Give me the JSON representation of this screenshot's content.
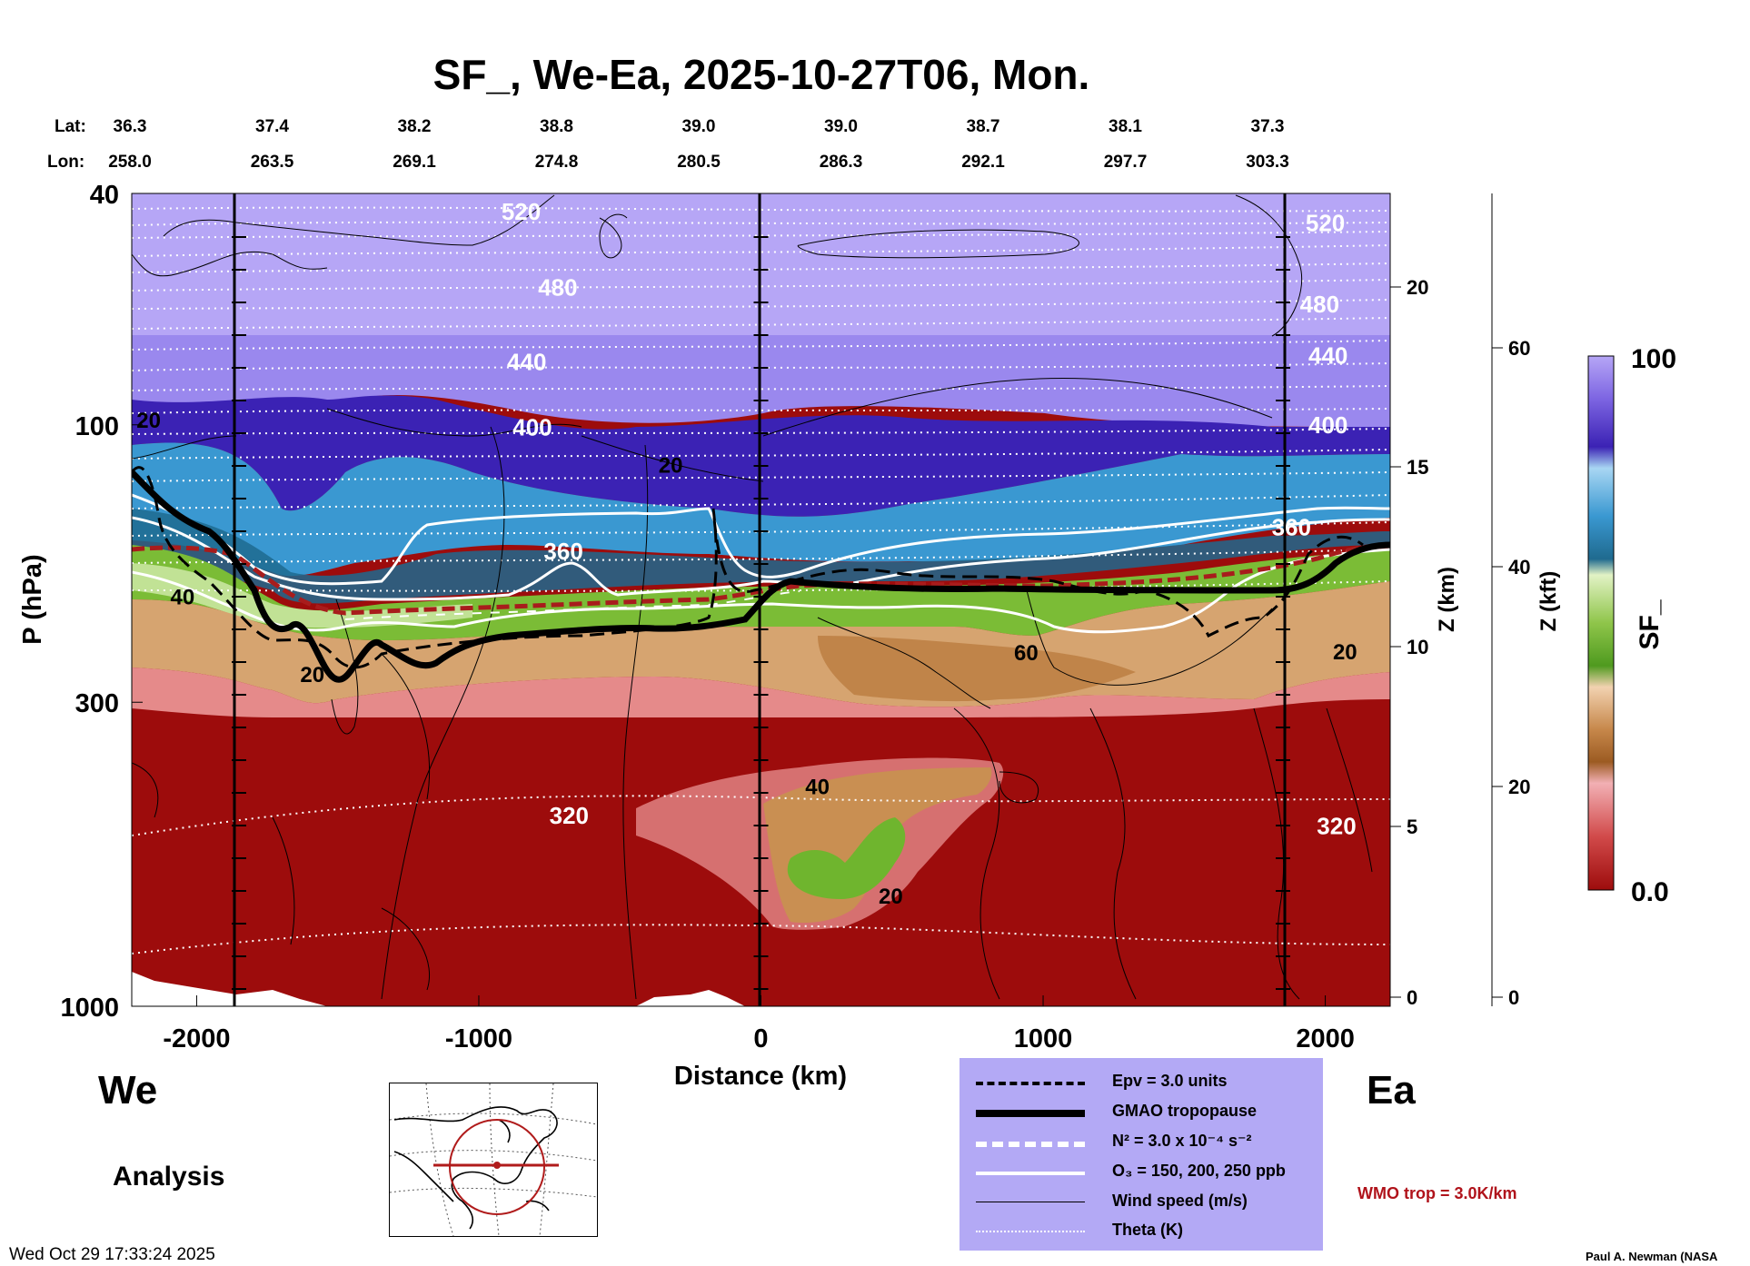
{
  "chart_data": {
    "type": "heatmap",
    "title": "SF_, We-Ea, 2025-10-27T06, Mon.",
    "xlabel": "Distance (km)",
    "ylabel": "P (hPa)",
    "y2label": "Z (km)",
    "y3label": "Z (kft)",
    "colorbar_label": "SF_",
    "colorbar_ticks": [
      "100",
      "0.0"
    ],
    "xlim": [
      -2230,
      2230
    ],
    "ylim": [
      1000,
      40
    ],
    "yscale": "log",
    "x_ticks": [
      {
        "value": -2000,
        "label": "-2000"
      },
      {
        "value": -1000,
        "label": "-1000"
      },
      {
        "value": 0,
        "label": "0"
      },
      {
        "value": 1000,
        "label": "1000"
      },
      {
        "value": 2000,
        "label": "2000"
      }
    ],
    "y_ticks": [
      {
        "value": 40,
        "label": "40"
      },
      {
        "value": 100,
        "label": "100"
      },
      {
        "value": 300,
        "label": "300"
      },
      {
        "value": 1000,
        "label": "1000"
      }
    ],
    "z_km_ticks": [
      "20",
      "15",
      "10",
      "5",
      "0"
    ],
    "z_kft_ticks": [
      "60",
      "40",
      "20",
      "0"
    ],
    "lat_label": "Lat:",
    "lon_label": "Lon:",
    "lat": [
      "36.3",
      "37.4",
      "38.2",
      "38.8",
      "39.0",
      "39.0",
      "38.7",
      "38.1",
      "37.3"
    ],
    "lon": [
      "258.0",
      "263.5",
      "269.1",
      "274.8",
      "280.5",
      "286.3",
      "292.1",
      "297.7",
      "303.3"
    ],
    "vertical_markers_km": [
      -1850,
      0,
      1850
    ],
    "theta_labels": [
      {
        "label": "520",
        "x": -850,
        "p": 43
      },
      {
        "label": "480",
        "x": -720,
        "p": 58
      },
      {
        "label": "440",
        "x": -830,
        "p": 78
      },
      {
        "label": "400",
        "x": -810,
        "p": 101
      },
      {
        "label": "360",
        "x": -700,
        "p": 165
      },
      {
        "label": "320",
        "x": -680,
        "p": 470
      },
      {
        "label": "520",
        "x": 2000,
        "p": 45
      },
      {
        "label": "480",
        "x": 1980,
        "p": 62
      },
      {
        "label": "440",
        "x": 2010,
        "p": 76
      },
      {
        "label": "400",
        "x": 2010,
        "p": 100
      },
      {
        "label": "360",
        "x": 1880,
        "p": 150
      },
      {
        "label": "320",
        "x": 2040,
        "p": 490
      }
    ],
    "wind_labels": [
      {
        "label": "20",
        "x": -2170,
        "p": 98
      },
      {
        "label": "20",
        "x": -320,
        "p": 117
      },
      {
        "label": "40",
        "x": -2050,
        "p": 197
      },
      {
        "label": "20",
        "x": -1590,
        "p": 268
      },
      {
        "label": "60",
        "x": 940,
        "p": 246
      },
      {
        "label": "20",
        "x": 2070,
        "p": 245
      },
      {
        "label": "40",
        "x": 200,
        "p": 418
      },
      {
        "label": "20",
        "x": 460,
        "p": 645
      }
    ],
    "legend": [
      {
        "label": "Epv = 3.0 units",
        "style": "dashed-black"
      },
      {
        "label": "GMAO tropopause",
        "style": "thick-black"
      },
      {
        "label": "N² = 3.0 x 10⁻⁴ s⁻²",
        "style": "dashed-white"
      },
      {
        "label": "O₃ = 150, 200, 250 ppb",
        "style": "solid-white"
      },
      {
        "label": "Wind speed (m/s)",
        "style": "thin-black"
      },
      {
        "label": "Theta (K)",
        "style": "dotted-white"
      }
    ],
    "wmo_note": "WMO trop = 3.0K/km",
    "direction_left": "We",
    "direction_right": "Ea",
    "product": "Analysis",
    "timestamp": "Wed Oct 29 17:33:24 2025",
    "credit": "Paul A. Newman (NASA"
  },
  "colors": {
    "stratosphere_top": "#b6a6f6",
    "violet": "#9a88ee",
    "deep_purple": "#3b22b4",
    "blue": "#2c8ad0",
    "teal": "#1f6a8f",
    "green": "#6fb52e",
    "light_green": "#c9e6a0",
    "tan": "#d6a470",
    "brown": "#b8793c",
    "pink": "#e58a8a",
    "dark_red": "#9d0c0c",
    "tropopause_red": "#a81c1c",
    "legend_bg": "#b3a9f5",
    "wmo_text": "#b0131b"
  }
}
